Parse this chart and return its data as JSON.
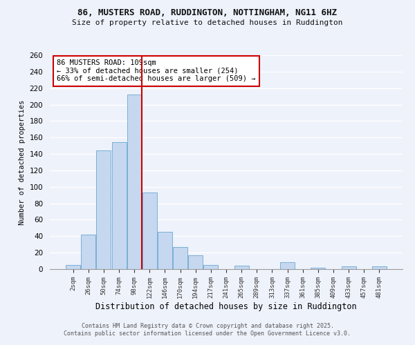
{
  "title1": "86, MUSTERS ROAD, RUDDINGTON, NOTTINGHAM, NG11 6HZ",
  "title2": "Size of property relative to detached houses in Ruddington",
  "xlabel": "Distribution of detached houses by size in Ruddington",
  "ylabel": "Number of detached properties",
  "bar_labels": [
    "2sqm",
    "26sqm",
    "50sqm",
    "74sqm",
    "98sqm",
    "122sqm",
    "146sqm",
    "170sqm",
    "194sqm",
    "217sqm",
    "241sqm",
    "265sqm",
    "289sqm",
    "313sqm",
    "337sqm",
    "361sqm",
    "385sqm",
    "409sqm",
    "433sqm",
    "457sqm",
    "481sqm"
  ],
  "bar_values": [
    5,
    42,
    144,
    154,
    212,
    93,
    45,
    27,
    17,
    5,
    0,
    4,
    0,
    0,
    8,
    0,
    2,
    0,
    3,
    0,
    3
  ],
  "bar_color": "#c5d8f0",
  "bar_edge_color": "#7aafd4",
  "vline_color": "#cc0000",
  "annotation_title": "86 MUSTERS ROAD: 109sqm",
  "annotation_line1": "← 33% of detached houses are smaller (254)",
  "annotation_line2": "66% of semi-detached houses are larger (509) →",
  "annotation_box_color": "#cc0000",
  "annotation_bg": "#ffffff",
  "ylim": [
    0,
    260
  ],
  "yticks": [
    0,
    20,
    40,
    60,
    80,
    100,
    120,
    140,
    160,
    180,
    200,
    220,
    240,
    260
  ],
  "bg_color": "#eef2fb",
  "grid_color": "#ffffff",
  "footer1": "Contains HM Land Registry data © Crown copyright and database right 2025.",
  "footer2": "Contains public sector information licensed under the Open Government Licence v3.0."
}
